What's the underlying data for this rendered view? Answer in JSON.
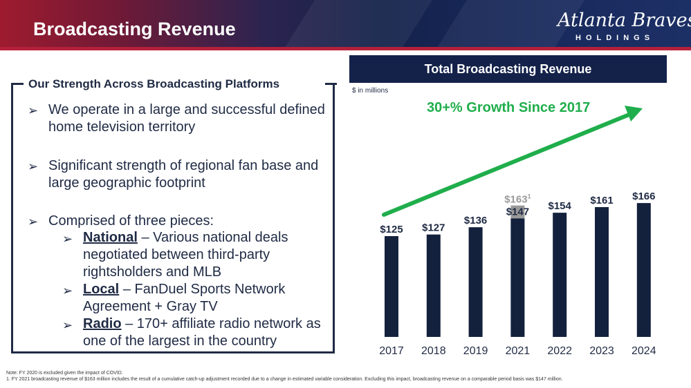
{
  "header": {
    "title": "Broadcasting Revenue",
    "logo_script": "Atlanta Braves",
    "logo_sub": "HOLDINGS"
  },
  "left": {
    "box_title": "Our Strength Across Broadcasting Platforms",
    "bullets": [
      "We operate in a large and successful defined home television territory",
      "Significant strength of regional fan base and large geographic footprint",
      "Comprised of three pieces:"
    ],
    "sub_items": [
      {
        "name": "National",
        "text": " – Various national deals negotiated between third-party rightsholders and MLB"
      },
      {
        "name": "Local",
        "text": " – FanDuel Sports Network Agreement + Gray TV"
      },
      {
        "name": "Radio",
        "text": " – 170+ affiliate radio network as one of the largest in the country"
      }
    ],
    "arrow_glyph": "➢"
  },
  "chart_data": {
    "type": "bar",
    "title": "Total Broadcasting Revenue",
    "units_label": "$ in millions",
    "annotation": "30+% Growth Since 2017",
    "categories": [
      "2017",
      "2018",
      "2019",
      "2021",
      "2022",
      "2023",
      "2024"
    ],
    "values": [
      125,
      127,
      136,
      147,
      154,
      161,
      166
    ],
    "value_labels": [
      "$125",
      "$127",
      "$136",
      "$147",
      "$154",
      "$161",
      "$166"
    ],
    "adjustment": {
      "category": "2021",
      "value": 163,
      "label": "$163",
      "footnote_mark": "1"
    },
    "ylim": [
      0,
      180
    ],
    "colors": {
      "bar": "#14213d",
      "adjustment": "#999999",
      "arrow": "#1fae4b"
    }
  },
  "footnotes": {
    "note": "Note: FY 2020 is excluded given the impact of COVID.",
    "fn1": "1.      FY 2021 broadcasting revenue of $163 million includes the result of a cumulative catch-up adjustment recorded due to a change in estimated variable consideration. Excluding this impact, broadcasting revenue on a comparable period basis was $147 million."
  }
}
